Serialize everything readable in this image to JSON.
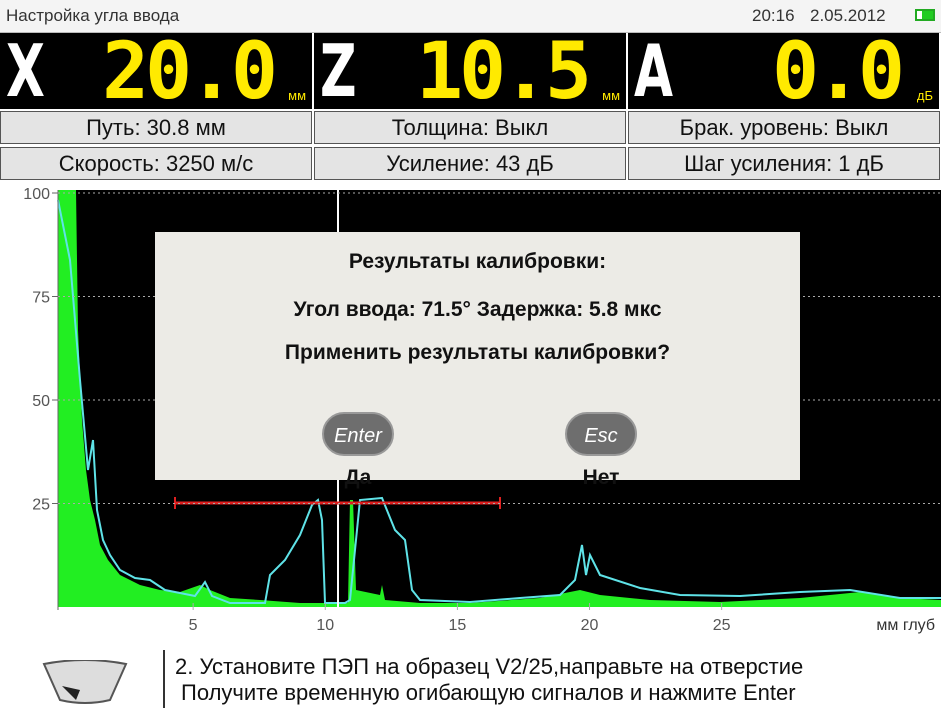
{
  "status_bar": {
    "title": "Настройка угла ввода",
    "time": "20:16",
    "date": "2.05.2012"
  },
  "readouts": [
    {
      "letter": "X",
      "value": "20.0",
      "unit": "мм"
    },
    {
      "letter": "Z",
      "value": "10.5",
      "unit": "мм"
    },
    {
      "letter": "A",
      "value": "0.0",
      "unit": "дБ"
    }
  ],
  "params": [
    "Путь: 30.8 мм",
    "Толщина: Выкл",
    "Брак. уровень: Выкл",
    "Скорость: 3250 м/с",
    "Усиление: 43 дБ",
    "Шаг усиления: 1 дБ"
  ],
  "scan": {
    "ylim": [
      0,
      100
    ],
    "yticks": [
      25,
      50,
      75,
      100
    ],
    "xlim": [
      0,
      33.3
    ],
    "xticks": [
      5,
      10,
      15,
      20,
      25
    ],
    "x_label": "мм глуб"
  },
  "dialog": {
    "title": "Результаты калибровки:",
    "result": "Угол ввода: 71.5° Задержка: 5.8 мкс",
    "question": "Применить результаты калибровки?",
    "buttons": [
      {
        "key": "Enter",
        "label": "Да"
      },
      {
        "key": "Esc",
        "label": "Нет"
      }
    ]
  },
  "hint": {
    "lines": [
      "2. Установите ПЭП на образец V2/25,направьте на отверстие",
      "Получите временную огибающую сигналов и нажмите Enter"
    ]
  }
}
